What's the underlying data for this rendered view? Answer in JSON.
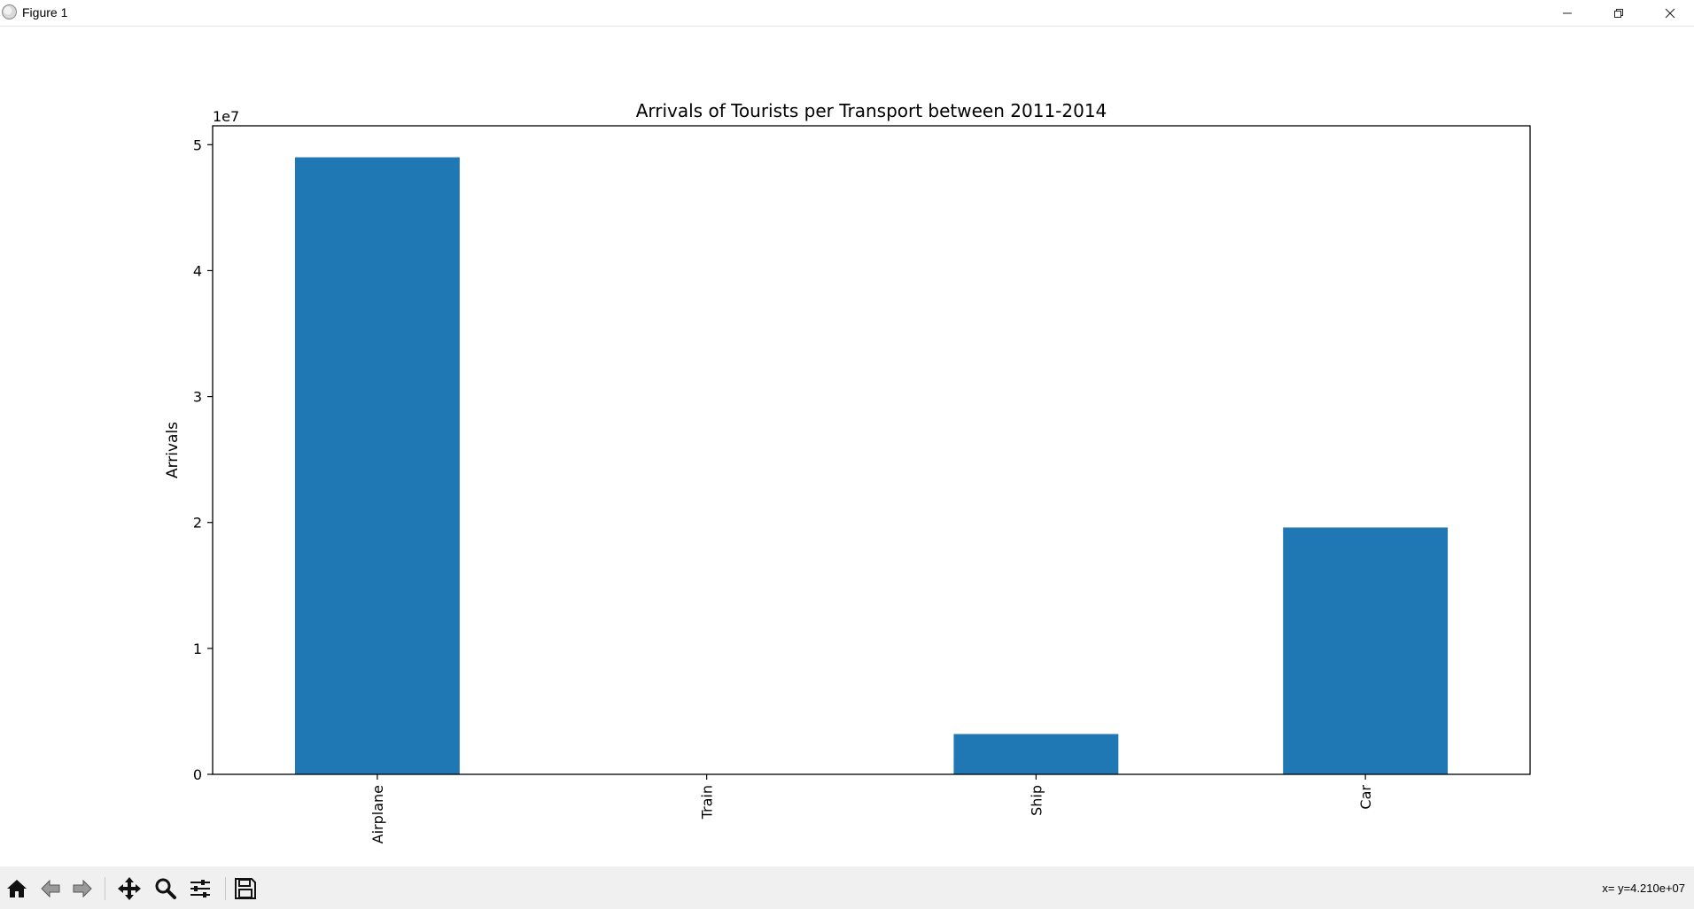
{
  "window": {
    "title": "Figure 1",
    "controls": {
      "minimize": "minimize",
      "maximize": "maximize",
      "close": "close"
    }
  },
  "toolbar": {
    "tools": [
      "home-icon",
      "back-arrow-icon",
      "forward-arrow-icon",
      "pan-icon",
      "zoom-icon",
      "configure-subplots-icon",
      "save-icon"
    ],
    "coordinates": "x= y=4.210e+07"
  },
  "colors": {
    "bar": "#1f77b4",
    "axes": "#000000",
    "background": "#ffffff",
    "toolbar": "#f0f0f0"
  },
  "chart_data": {
    "type": "bar",
    "title": "Arrivals of Tourists per Transport between 2011-2014",
    "xlabel": "",
    "ylabel": "Arrivals",
    "offset_label": "1e7",
    "categories": [
      "Airplane",
      "Train",
      "Ship",
      "Car"
    ],
    "values": [
      49000000,
      0,
      3200000,
      19600000
    ],
    "ylim": [
      0,
      51500000
    ],
    "yticks": [
      0,
      10000000,
      20000000,
      30000000,
      40000000,
      50000000
    ],
    "ytick_labels": [
      "0",
      "1",
      "2",
      "3",
      "4",
      "5"
    ],
    "x_tick_rotation": "vertical",
    "grid": false,
    "legend": "none"
  }
}
